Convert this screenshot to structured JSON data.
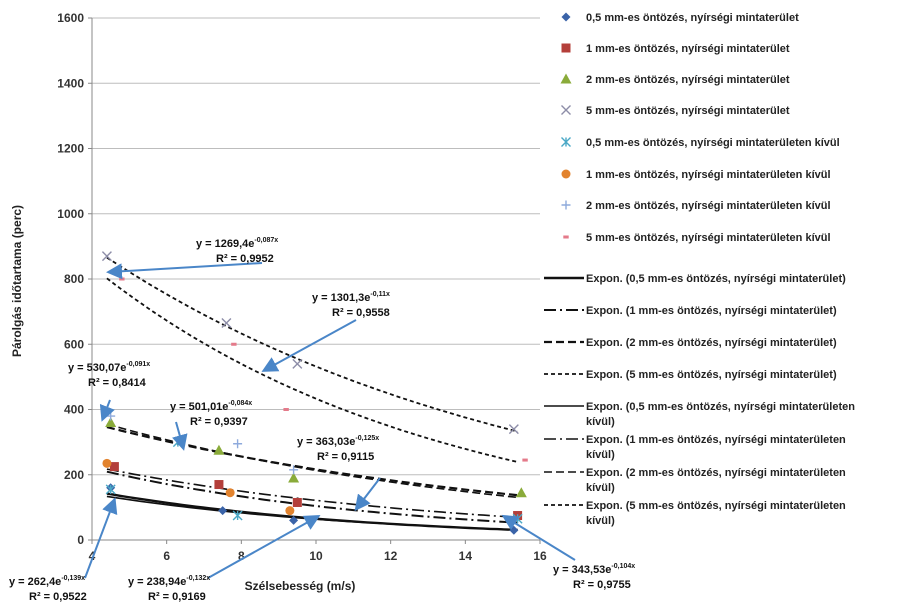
{
  "chart_data": {
    "type": "scatter",
    "title": "",
    "xlabel": "Szélsebesség (m/s)",
    "ylabel": "Párolgás időtartama (perc)",
    "xlim": [
      4,
      16
    ],
    "ylim": [
      0,
      1600
    ],
    "xticks": [
      "4",
      "6",
      "8",
      "10",
      "12",
      "14",
      "16"
    ],
    "yticks": [
      "0",
      "200",
      "400",
      "600",
      "800",
      "1000",
      "1200",
      "1400",
      "1600"
    ],
    "grid": "horizontal",
    "legend_position": "right",
    "series": [
      {
        "name": "0,5 mm-es öntözés, nyírségi mintaterület",
        "marker": "diamond",
        "color": "#3a63a8",
        "x": [
          4.5,
          7.5,
          9.4,
          15.3
        ],
        "y": [
          160,
          90,
          60,
          30
        ]
      },
      {
        "name": "1 mm-es öntözés, nyírségi mintaterület",
        "marker": "square",
        "color": "#b43f3a",
        "x": [
          4.6,
          7.4,
          9.5,
          15.4
        ],
        "y": [
          225,
          170,
          115,
          75
        ]
      },
      {
        "name": "2 mm-es öntözés, nyírségi mintaterület",
        "marker": "triangle",
        "color": "#8aab3a",
        "x": [
          4.5,
          7.4,
          9.4,
          15.5
        ],
        "y": [
          360,
          275,
          190,
          145
        ]
      },
      {
        "name": "5 mm-es öntözés, nyírségi mintaterület",
        "marker": "x",
        "color": "#8d8da8",
        "x": [
          4.4,
          7.6,
          9.5,
          15.3
        ],
        "y": [
          870,
          665,
          540,
          340
        ]
      },
      {
        "name": "0,5 mm-es öntözés, nyírségi mintaterületen kívül",
        "marker": "asterisk",
        "color": "#4aa8c6",
        "x": [
          4.5,
          6.3,
          7.9,
          15.4
        ],
        "y": [
          155,
          300,
          75,
          65
        ]
      },
      {
        "name": "1 mm-es öntözés, nyírségi mintaterületen kívül",
        "marker": "circle",
        "color": "#e2832e",
        "x": [
          4.4,
          7.7,
          9.3
        ],
        "y": [
          235,
          145,
          90
        ]
      },
      {
        "name": "2 mm-es öntözés, nyírségi mintaterületen kívül",
        "marker": "plus",
        "color": "#8eaadc",
        "x": [
          4.5,
          7.9,
          9.4
        ],
        "y": [
          380,
          295,
          215
        ]
      },
      {
        "name": "5 mm-es öntözés, nyírségi mintaterületen kívül",
        "marker": "dash",
        "color": "#e47a8a",
        "x": [
          4.8,
          7.8,
          9.2,
          15.6
        ],
        "y": [
          800,
          600,
          400,
          245
        ]
      }
    ],
    "trendlines": [
      {
        "name": "Expon. (0,5 mm-es öntözés, nyírségi mintaterület)",
        "a": 262.4,
        "b": -0.139,
        "x_range": [
          4.4,
          15.4
        ],
        "dash": "solid",
        "width": 2.4
      },
      {
        "name": "Expon. (1 mm-es öntözés, nyírségi mintaterület)",
        "a": 363.03,
        "b": -0.125,
        "x_range": [
          4.4,
          15.4
        ],
        "dash": "longdashdot",
        "width": 2.0
      },
      {
        "name": "Expon. (2 mm-es öntözés, nyírségi mintaterület)",
        "a": 501.01,
        "b": -0.084,
        "x_range": [
          4.4,
          15.4
        ],
        "dash": "dashed",
        "width": 2.2
      },
      {
        "name": "Expon. (5 mm-es öntözés, nyírségi mintaterület)",
        "a": 1269.4,
        "b": -0.087,
        "x_range": [
          4.4,
          15.4
        ],
        "dash": "shortdash",
        "width": 1.8
      },
      {
        "name": "Expon. (0,5 mm-es öntözés, nyírségi mintaterületen kívül)",
        "a": 238.94,
        "b": -0.132,
        "x_range": [
          4.4,
          15.4
        ],
        "dash": "solid",
        "width": 1.6
      },
      {
        "name": "Expon. (1 mm-es öntözés, nyírségi mintaterületen kívül)",
        "a": 343.53,
        "b": -0.104,
        "x_range": [
          4.4,
          15.4
        ],
        "dash": "longdashdot",
        "width": 1.6
      },
      {
        "name": "Expon. (2 mm-es öntözés, nyírségi mintaterületen kívül)",
        "a": 530.07,
        "b": -0.091,
        "x_range": [
          4.4,
          15.4
        ],
        "dash": "dashed",
        "width": 1.6
      },
      {
        "name": "Expon. (5 mm-es öntözés, nyírségi mintaterületen kívül)",
        "a": 1301.3,
        "b": -0.11,
        "x_range": [
          4.4,
          15.4
        ],
        "dash": "shortdash",
        "width": 1.8
      }
    ],
    "annotations": [
      {
        "id": "eq1",
        "base": "y = 1269,4e",
        "exp": "-0,087x",
        "r2": "R² = 0,9952"
      },
      {
        "id": "eq2",
        "base": "y = 1301,3e",
        "exp": "-0,11x",
        "r2": "R² = 0,9558"
      },
      {
        "id": "eq3",
        "base": "y = 530,07e",
        "exp": "-0,091x",
        "r2": "R² = 0,8414"
      },
      {
        "id": "eq4",
        "base": "y = 501,01e",
        "exp": "-0,084x",
        "r2": "R² = 0,9397"
      },
      {
        "id": "eq5",
        "base": "y = 363,03e",
        "exp": "-0,125x",
        "r2": "R² = 0,9115"
      },
      {
        "id": "eq6",
        "base": "y = 262,4e",
        "exp": "-0,139x",
        "r2": "R² = 0,9522"
      },
      {
        "id": "eq7",
        "base": "y = 238,94e",
        "exp": "-0,132x",
        "r2": "R² = 0,9169"
      },
      {
        "id": "eq8",
        "base": "y = 343,53e",
        "exp": "-0,104x",
        "r2": "R² = 0,9755"
      }
    ],
    "legend_entries": [
      [
        "0,5 mm-es öntözés, nyírségi mintaterület"
      ],
      [
        "1 mm-es öntözés, nyírségi mintaterület"
      ],
      [
        "2 mm-es öntözés, nyírségi mintaterület"
      ],
      [
        "5 mm-es öntözés, nyírségi mintaterület"
      ],
      [
        "0,5 mm-es öntözés, nyírségi mintaterületen kívül"
      ],
      [
        "1 mm-es öntözés, nyírségi mintaterületen kívül"
      ],
      [
        "2 mm-es öntözés, nyírségi mintaterületen kívül"
      ],
      [
        "5 mm-es öntözés, nyírségi mintaterületen kívül"
      ],
      [
        "Expon. (0,5 mm-es öntözés, nyírségi mintaterület)"
      ],
      [
        "Expon. (1 mm-es öntözés, nyírségi mintaterület)"
      ],
      [
        "Expon. (2 mm-es öntözés, nyírségi mintaterület)"
      ],
      [
        "Expon. (5 mm-es öntözés, nyírségi mintaterület)"
      ],
      [
        "Expon. (0,5 mm-es öntözés, nyírségi mintaterületen",
        "kívül)"
      ],
      [
        "Expon. (1 mm-es öntözés, nyírségi mintaterületen",
        "kívül)"
      ],
      [
        "Expon. (2 mm-es öntözés, nyírségi mintaterületen",
        "kívül)"
      ],
      [
        "Expon. (5 mm-es öntözés, nyírségi mintaterületen",
        "kívül)"
      ]
    ],
    "arrow_color": "#4a86c8",
    "gridline_color": "#bdbdbd"
  }
}
